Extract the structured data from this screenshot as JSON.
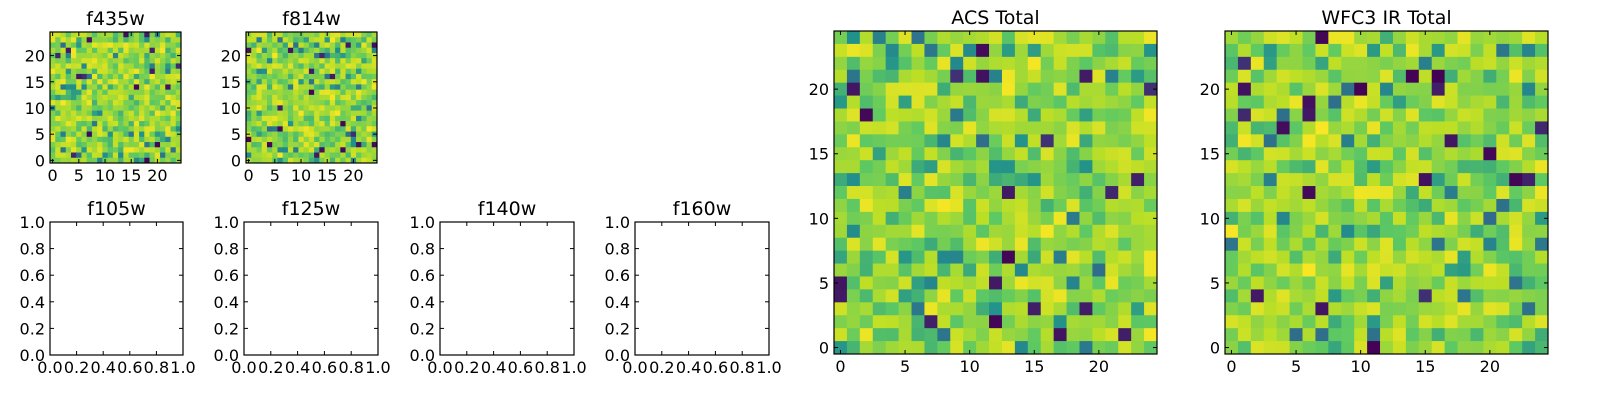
{
  "figure": {
    "panels": [
      {
        "id": "f435w",
        "title": "f435w",
        "kind": "image",
        "xticks": [
          "0",
          "5",
          "10",
          "15",
          "20"
        ],
        "yticks": [
          "0",
          "5",
          "10",
          "15",
          "20"
        ]
      },
      {
        "id": "f814w",
        "title": "f814w",
        "kind": "image",
        "xticks": [
          "0",
          "5",
          "10",
          "15",
          "20"
        ],
        "yticks": [
          "0",
          "5",
          "10",
          "15",
          "20"
        ]
      },
      {
        "id": "f105w",
        "title": "f105w",
        "kind": "empty",
        "xticks": [
          "0.0",
          "0.2",
          "0.4",
          "0.6",
          "0.8",
          "1.0"
        ],
        "yticks": [
          "0.0",
          "0.2",
          "0.4",
          "0.6",
          "0.8",
          "1.0"
        ]
      },
      {
        "id": "f125w",
        "title": "f125w",
        "kind": "empty",
        "xticks": [
          "0.0",
          "0.2",
          "0.4",
          "0.6",
          "0.8",
          "1.0"
        ],
        "yticks": [
          "0.0",
          "0.2",
          "0.4",
          "0.6",
          "0.8",
          "1.0"
        ]
      },
      {
        "id": "f140w",
        "title": "f140w",
        "kind": "empty",
        "xticks": [
          "0.0",
          "0.2",
          "0.4",
          "0.6",
          "0.8",
          "1.0"
        ],
        "yticks": [
          "0.0",
          "0.2",
          "0.4",
          "0.6",
          "0.8",
          "1.0"
        ]
      },
      {
        "id": "f160w",
        "title": "f160w",
        "kind": "empty",
        "xticks": [
          "0.0",
          "0.2",
          "0.4",
          "0.6",
          "0.8",
          "1.0"
        ],
        "yticks": [
          "0.0",
          "0.2",
          "0.4",
          "0.6",
          "0.8",
          "1.0"
        ]
      },
      {
        "id": "acs_total",
        "title": "ACS Total",
        "kind": "image",
        "xticks": [
          "0",
          "5",
          "10",
          "15",
          "20"
        ],
        "yticks": [
          "0",
          "5",
          "10",
          "15",
          "20"
        ]
      },
      {
        "id": "wfc3_total",
        "title": "WFC3 IR Total",
        "kind": "image",
        "xticks": [
          "0",
          "5",
          "10",
          "15",
          "20"
        ],
        "yticks": [
          "0",
          "5",
          "10",
          "15",
          "20"
        ]
      }
    ]
  },
  "chart_data": [
    {
      "type": "heatmap",
      "title": "f435w",
      "grid_size": [
        25,
        25
      ],
      "xlim": [
        -0.5,
        24.5
      ],
      "ylim": [
        -0.5,
        24.5
      ],
      "colormap": "viridis",
      "note_values": "random noise field, values not individually readable"
    },
    {
      "type": "heatmap",
      "title": "f814w",
      "grid_size": [
        25,
        25
      ],
      "xlim": [
        -0.5,
        24.5
      ],
      "ylim": [
        -0.5,
        24.5
      ],
      "colormap": "viridis"
    },
    {
      "type": "empty",
      "title": "f105w",
      "xlim": [
        0,
        1
      ],
      "ylim": [
        0,
        1
      ]
    },
    {
      "type": "empty",
      "title": "f125w",
      "xlim": [
        0,
        1
      ],
      "ylim": [
        0,
        1
      ]
    },
    {
      "type": "empty",
      "title": "f140w",
      "xlim": [
        0,
        1
      ],
      "ylim": [
        0,
        1
      ]
    },
    {
      "type": "empty",
      "title": "f160w",
      "xlim": [
        0,
        1
      ],
      "ylim": [
        0,
        1
      ]
    },
    {
      "type": "heatmap",
      "title": "ACS Total",
      "grid_size": [
        25,
        25
      ],
      "xlim": [
        -0.5,
        24.5
      ],
      "ylim": [
        -0.5,
        24.5
      ],
      "colormap": "viridis"
    },
    {
      "type": "heatmap",
      "title": "WFC3 IR Total",
      "grid_size": [
        25,
        25
      ],
      "xlim": [
        -0.5,
        24.5
      ],
      "ylim": [
        -0.5,
        24.5
      ],
      "colormap": "viridis"
    }
  ],
  "colors": {
    "viridis": [
      "#440154",
      "#3b528b",
      "#21918c",
      "#5ec962",
      "#bddf26",
      "#fde725"
    ]
  }
}
